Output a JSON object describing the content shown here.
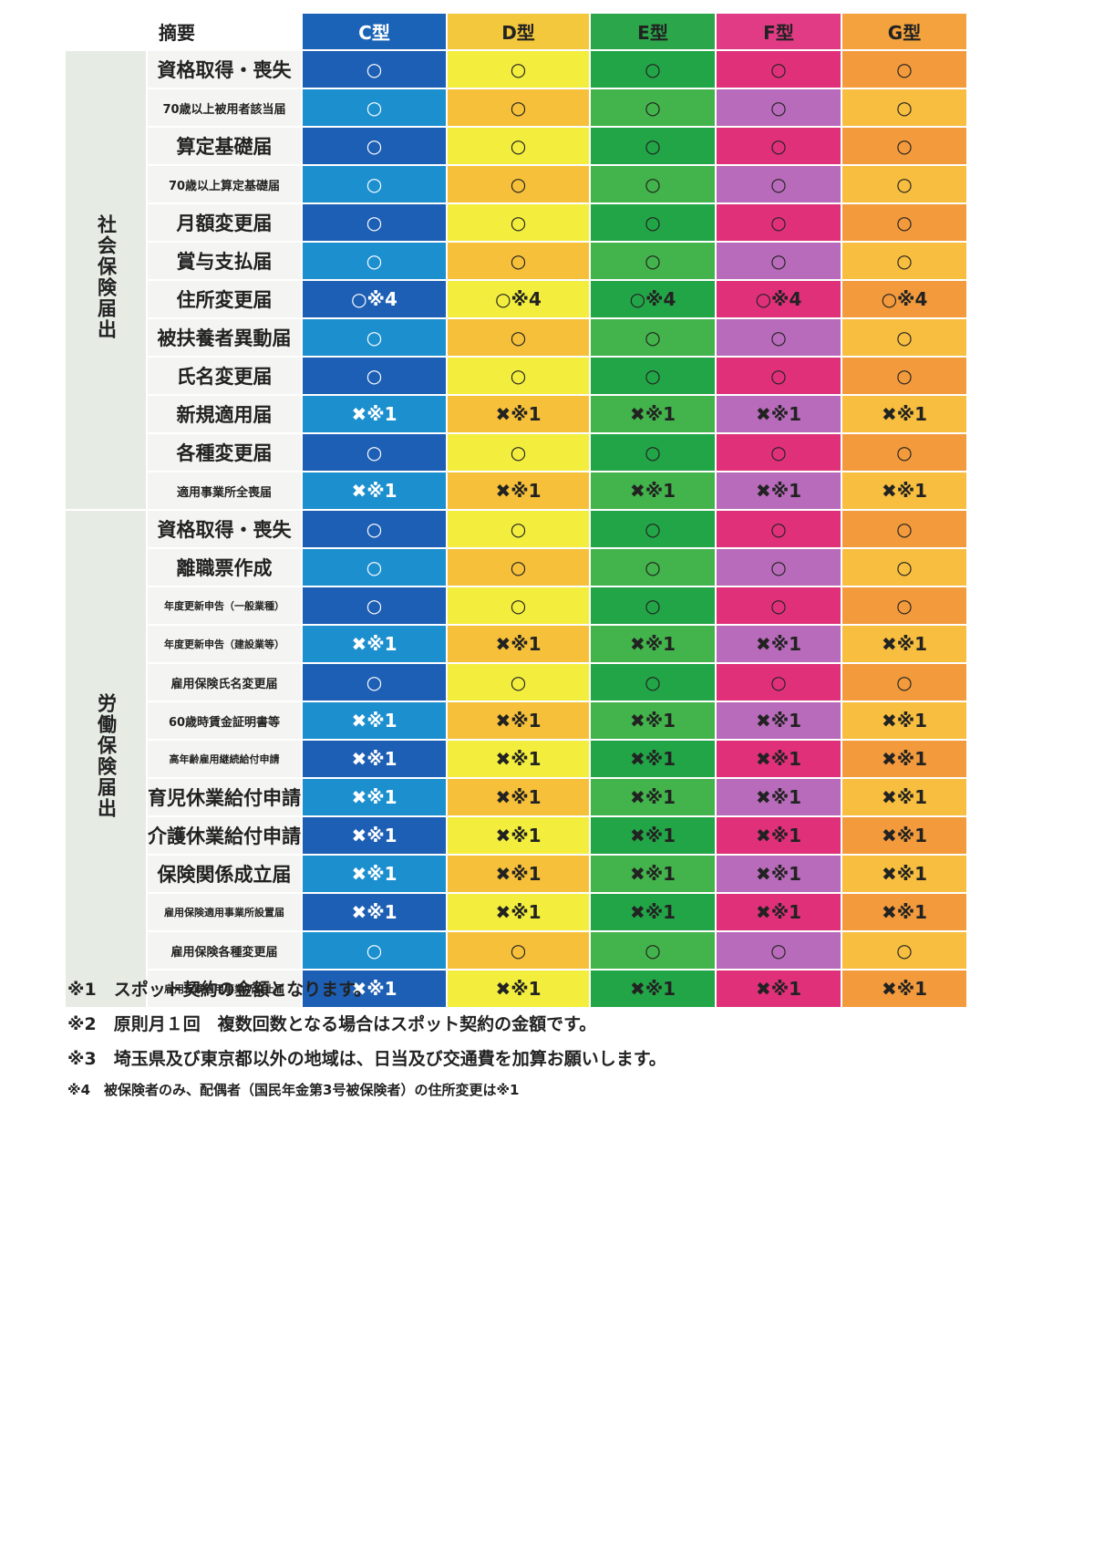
{
  "header": {
    "summary_label": "摘要",
    "plans": [
      "C型",
      "D型",
      "E型",
      "F型",
      "G型"
    ]
  },
  "colors": {
    "C": [
      "#1d5fb4",
      "#1c8fcf"
    ],
    "D": [
      "#f3ee3e",
      "#f6c03a"
    ],
    "E": [
      "#22a547",
      "#43b34b"
    ],
    "F": [
      "#e0307a",
      "#b86bba"
    ],
    "G": [
      "#f29a3c",
      "#f7be3f"
    ],
    "header": {
      "C": "#1b63b6",
      "D": "#f4c83d",
      "E": "#2ba64a",
      "F": "#e03b84",
      "G": "#f3a23d"
    }
  },
  "categories": [
    {
      "label": "社会保険届出",
      "rows": 12
    },
    {
      "label": "労働保険届出",
      "rows": 13
    }
  ],
  "rows": [
    {
      "label": "資格取得・喪失",
      "size": "l",
      "marks": [
        "○",
        "○",
        "○",
        "○",
        "○"
      ]
    },
    {
      "label": "70歳以上被用者該当届",
      "size": "s",
      "marks": [
        "○",
        "○",
        "○",
        "○",
        "○"
      ]
    },
    {
      "label": "算定基礎届",
      "size": "l",
      "marks": [
        "○",
        "○",
        "○",
        "○",
        "○"
      ]
    },
    {
      "label": "70歳以上算定基礎届",
      "size": "s",
      "marks": [
        "○",
        "○",
        "○",
        "○",
        "○"
      ]
    },
    {
      "label": "月額変更届",
      "size": "l",
      "marks": [
        "○",
        "○",
        "○",
        "○",
        "○"
      ]
    },
    {
      "label": "賞与支払届",
      "size": "l",
      "marks": [
        "○",
        "○",
        "○",
        "○",
        "○"
      ]
    },
    {
      "label": "住所変更届",
      "size": "l",
      "marks": [
        "○※4",
        "○※4",
        "○※4",
        "○※4",
        "○※4"
      ]
    },
    {
      "label": "被扶養者異動届",
      "size": "l",
      "marks": [
        "○",
        "○",
        "○",
        "○",
        "○"
      ]
    },
    {
      "label": "氏名変更届",
      "size": "l",
      "marks": [
        "○",
        "○",
        "○",
        "○",
        "○"
      ]
    },
    {
      "label": "新規適用届",
      "size": "l",
      "marks": [
        "✖※1",
        "✖※1",
        "✖※1",
        "✖※1",
        "✖※1"
      ]
    },
    {
      "label": "各種変更届",
      "size": "l",
      "marks": [
        "○",
        "○",
        "○",
        "○",
        "○"
      ]
    },
    {
      "label": "適用事業所全喪届",
      "size": "s",
      "marks": [
        "✖※1",
        "✖※1",
        "✖※1",
        "✖※1",
        "✖※1"
      ]
    },
    {
      "label": "資格取得・喪失",
      "size": "l",
      "marks": [
        "○",
        "○",
        "○",
        "○",
        "○"
      ]
    },
    {
      "label": "離職票作成",
      "size": "l",
      "marks": [
        "○",
        "○",
        "○",
        "○",
        "○"
      ]
    },
    {
      "label": "年度更新申告（一般業種）",
      "size": "xs",
      "marks": [
        "○",
        "○",
        "○",
        "○",
        "○"
      ]
    },
    {
      "label": "年度更新申告（建設業等）",
      "size": "xs",
      "marks": [
        "✖※1",
        "✖※1",
        "✖※1",
        "✖※1",
        "✖※1"
      ]
    },
    {
      "label": "雇用保険氏名変更届",
      "size": "s",
      "marks": [
        "○",
        "○",
        "○",
        "○",
        "○"
      ]
    },
    {
      "label": "60歳時賃金証明書等",
      "size": "s",
      "marks": [
        "✖※1",
        "✖※1",
        "✖※1",
        "✖※1",
        "✖※1"
      ]
    },
    {
      "label": "高年齢雇用継続給付申請",
      "size": "xs",
      "marks": [
        "✖※1",
        "✖※1",
        "✖※1",
        "✖※1",
        "✖※1"
      ]
    },
    {
      "label": "育児休業給付申請",
      "size": "l",
      "marks": [
        "✖※1",
        "✖※1",
        "✖※1",
        "✖※1",
        "✖※1"
      ]
    },
    {
      "label": "介護休業給付申請",
      "size": "l",
      "marks": [
        "✖※1",
        "✖※1",
        "✖※1",
        "✖※1",
        "✖※1"
      ]
    },
    {
      "label": "保険関係成立届",
      "size": "l",
      "marks": [
        "✖※1",
        "✖※1",
        "✖※1",
        "✖※1",
        "✖※1"
      ]
    },
    {
      "label": "雇用保険適用事業所設置届",
      "size": "xs",
      "marks": [
        "✖※1",
        "✖※1",
        "✖※1",
        "✖※1",
        "✖※1"
      ]
    },
    {
      "label": "雇用保険各種変更届",
      "size": "s",
      "marks": [
        "○",
        "○",
        "○",
        "○",
        "○"
      ]
    },
    {
      "label": "雇用保険適用事業所廃止届",
      "size": "xs",
      "marks": [
        "✖※1",
        "✖※1",
        "✖※1",
        "✖※1",
        "✖※1"
      ]
    }
  ],
  "notes": [
    {
      "text": "※1　スポット契約の金額となります。",
      "size": 19
    },
    {
      "text": "※2　原則月１回　複数回数となる場合はスポット契約の金額です。",
      "size": 19
    },
    {
      "text": "※3　埼玉県及び東京都以外の地域は、日当及び交通費を加算お願いします。",
      "size": 19
    },
    {
      "text": "※4　被保険者のみ、配偶者（国民年金第3号被保険者）の住所変更は※1",
      "size": 15
    }
  ]
}
